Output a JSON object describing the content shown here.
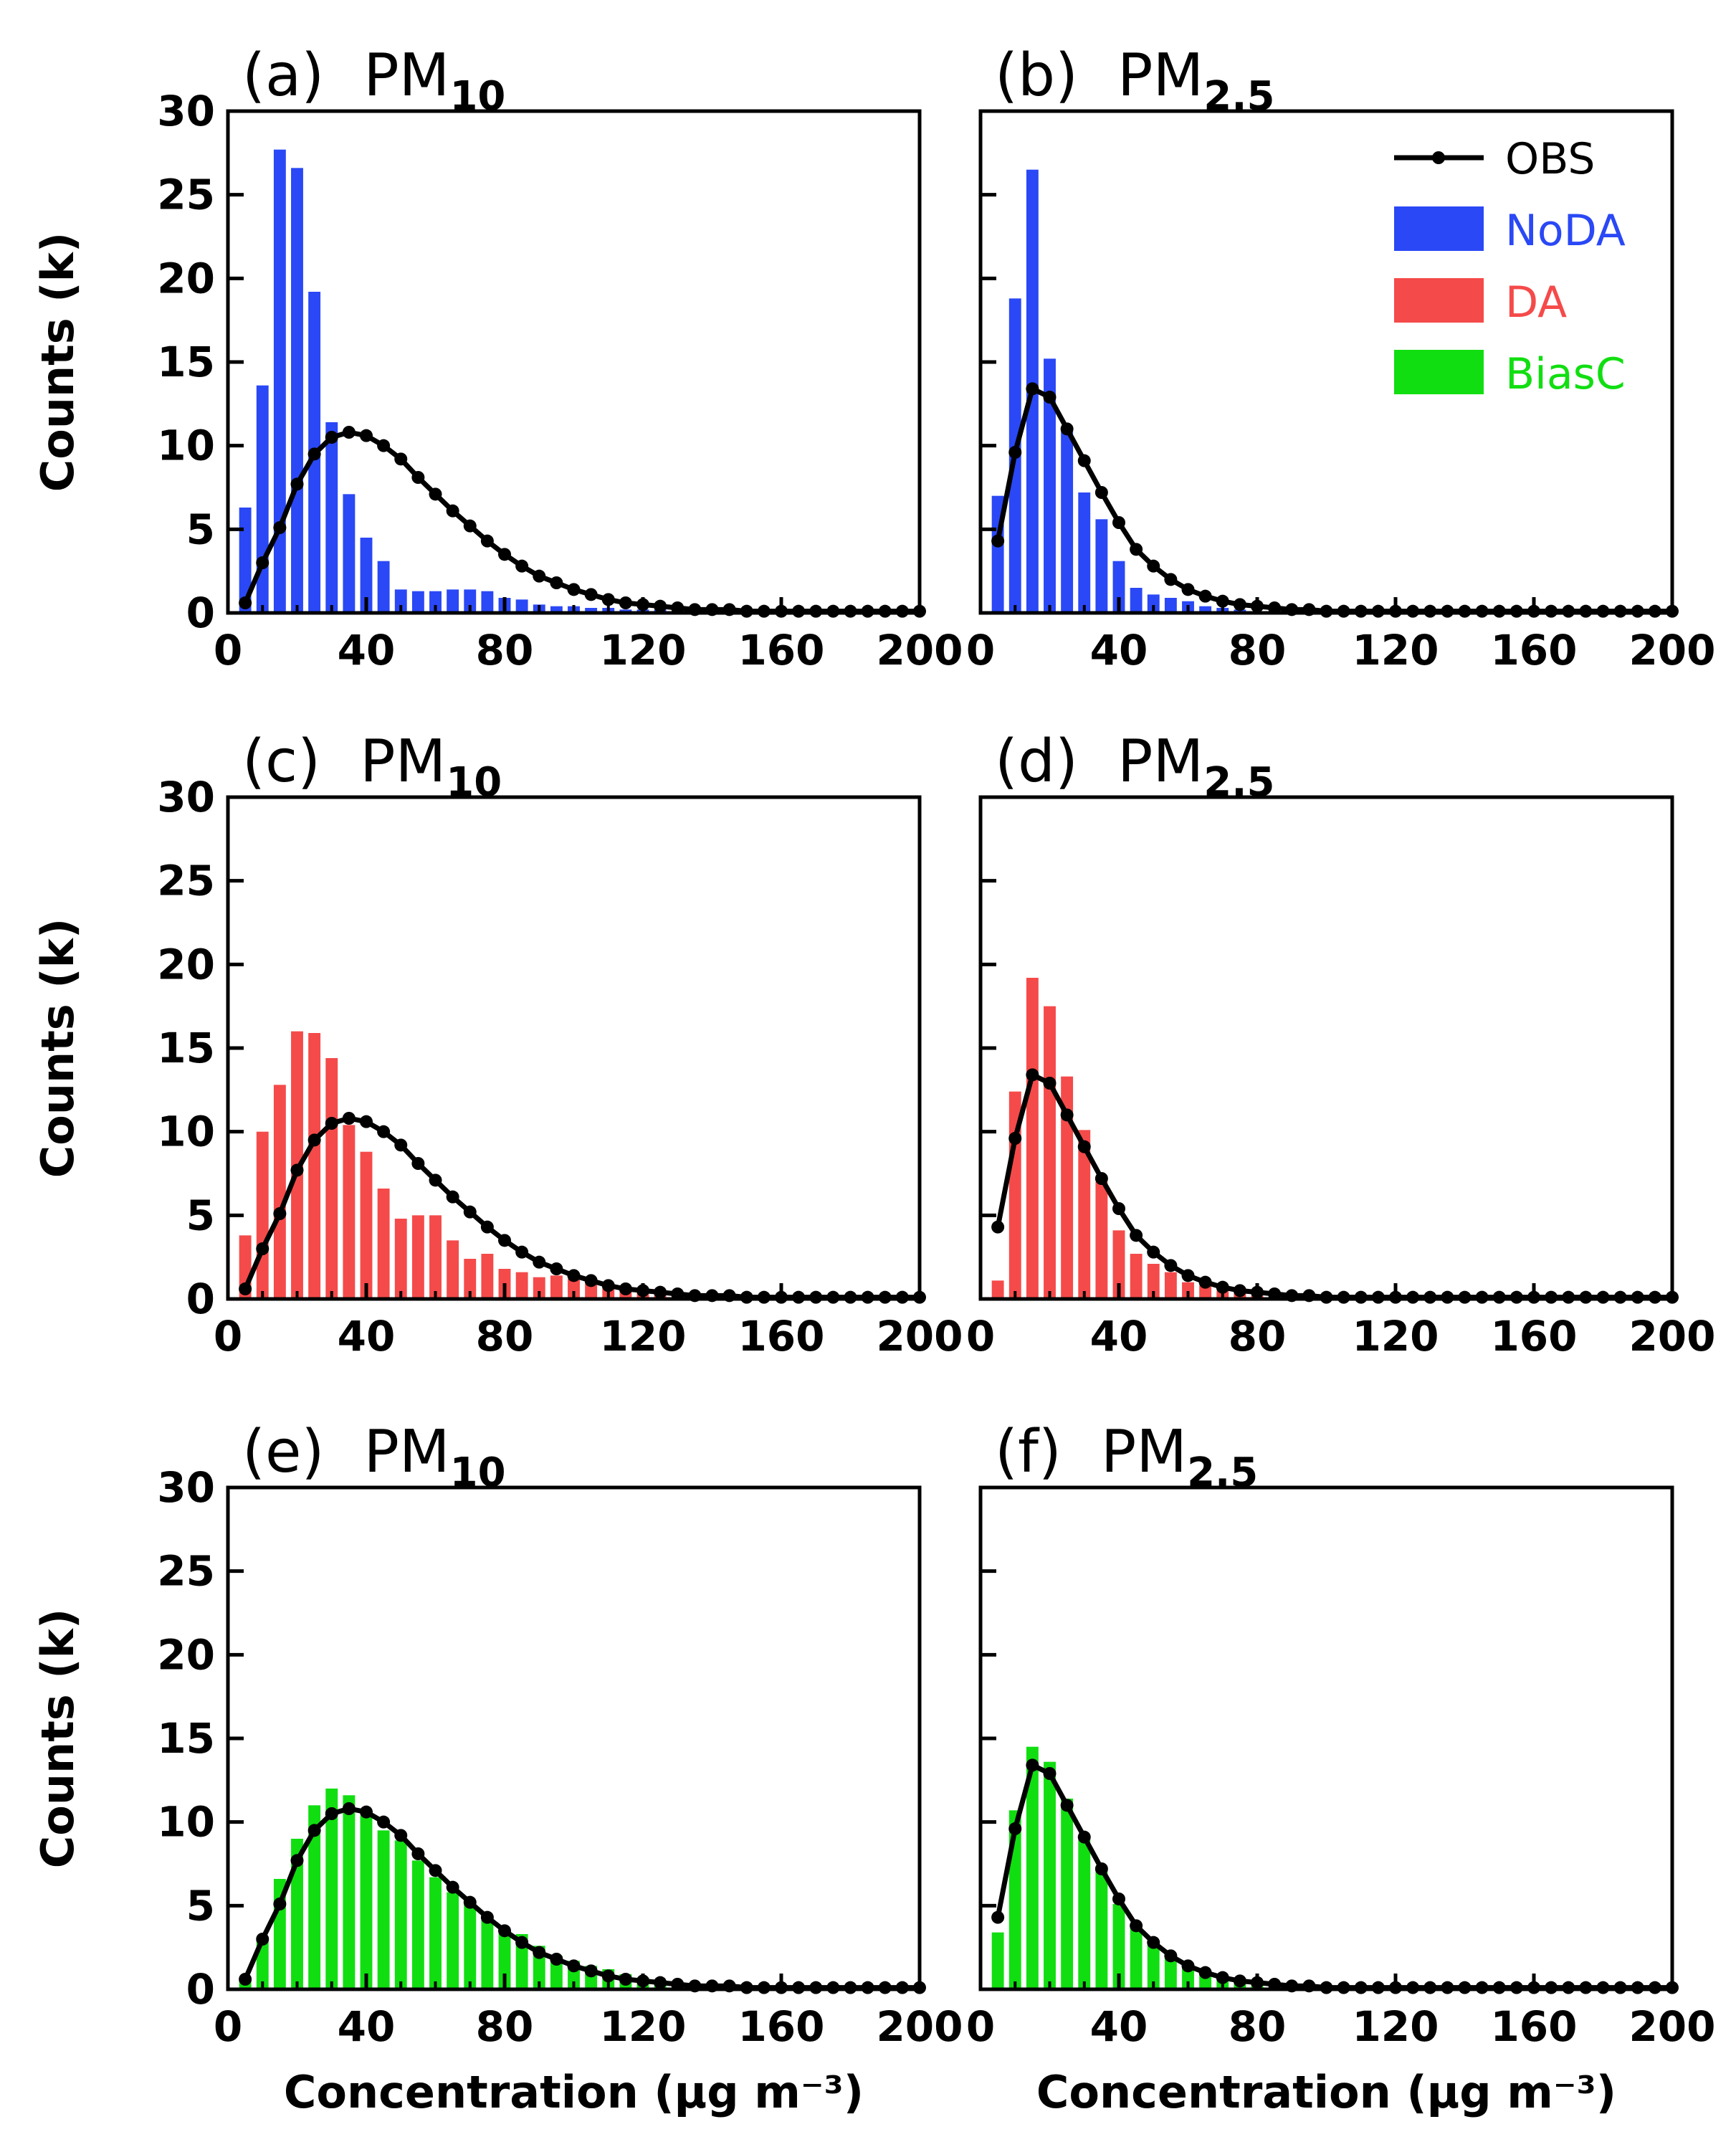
{
  "colors": {
    "NoDA": "#2a48f5",
    "DA": "#f54a4a",
    "BiasC": "#11de11",
    "OBS": "#000000"
  },
  "legend": [
    {
      "name": "OBS",
      "label": "OBS",
      "color": "#000000",
      "kind": "line"
    },
    {
      "name": "NoDA",
      "label": "NoDA",
      "color": "#2a48f5",
      "kind": "bar"
    },
    {
      "name": "DA",
      "label": "DA",
      "color": "#f54a4a",
      "kind": "bar"
    },
    {
      "name": "BiasC",
      "label": "BiasC",
      "color": "#11de11",
      "kind": "bar"
    }
  ],
  "ylabel": "Counts (k)",
  "xlabel": "Concentration (μg m⁻³)",
  "chart_data": [
    {
      "panel": "a",
      "title_letter": "(a)",
      "title_main": "PM",
      "title_sub": "10",
      "type": "bar",
      "xlim": [
        0,
        200
      ],
      "ylim": [
        0,
        30
      ],
      "xticks": [
        0,
        40,
        80,
        120,
        160,
        200
      ],
      "yticks": [
        0,
        5,
        10,
        15,
        20,
        25,
        30
      ],
      "bar_width": 3.5,
      "bars": {
        "name": "NoDA",
        "color": "#2a48f5",
        "x": [
          5,
          10,
          15,
          20,
          25,
          30,
          35,
          40,
          45,
          50,
          55,
          60,
          65,
          70,
          75,
          80,
          85,
          90,
          95,
          100,
          105,
          110,
          115,
          120,
          125,
          130,
          135,
          140,
          145,
          150,
          155,
          160,
          165,
          170,
          175,
          180,
          185,
          190,
          195,
          200
        ],
        "y": [
          6.3,
          13.6,
          27.7,
          26.6,
          19.2,
          11.4,
          7.1,
          4.5,
          3.1,
          1.4,
          1.3,
          1.3,
          1.4,
          1.4,
          1.3,
          0.9,
          0.8,
          0.5,
          0.4,
          0.4,
          0.3,
          0.3,
          0.2,
          0.2,
          0.2,
          0.1,
          0.1,
          0.1,
          0.1,
          0.1,
          0.1,
          0.1,
          0.1,
          0.1,
          0.1,
          0.1,
          0.1,
          0.1,
          0.1,
          0.1
        ]
      },
      "obs": {
        "name": "OBS",
        "x": [
          5,
          10,
          15,
          20,
          25,
          30,
          35,
          40,
          45,
          50,
          55,
          60,
          65,
          70,
          75,
          80,
          85,
          90,
          95,
          100,
          105,
          110,
          115,
          120,
          125,
          130,
          135,
          140,
          145,
          150,
          155,
          160,
          165,
          170,
          175,
          180,
          185,
          190,
          195,
          200
        ],
        "y": [
          0.6,
          3.0,
          5.1,
          7.7,
          9.5,
          10.5,
          10.8,
          10.6,
          10.0,
          9.2,
          8.1,
          7.1,
          6.1,
          5.2,
          4.3,
          3.5,
          2.8,
          2.2,
          1.8,
          1.4,
          1.1,
          0.8,
          0.6,
          0.5,
          0.4,
          0.3,
          0.2,
          0.2,
          0.2,
          0.1,
          0.1,
          0.1,
          0.1,
          0.1,
          0.1,
          0.1,
          0.1,
          0.1,
          0.1,
          0.1
        ]
      }
    },
    {
      "panel": "b",
      "title_letter": "(b)",
      "title_main": "PM",
      "title_sub": "2.5",
      "type": "bar",
      "xlim": [
        0,
        200
      ],
      "ylim": [
        0,
        30
      ],
      "xticks": [
        0,
        40,
        80,
        120,
        160,
        200
      ],
      "yticks": [
        0,
        5,
        10,
        15,
        20,
        25,
        30
      ],
      "bar_width": 3.5,
      "bars": {
        "name": "NoDA",
        "color": "#2a48f5",
        "x": [
          5,
          10,
          15,
          20,
          25,
          30,
          35,
          40,
          45,
          50,
          55,
          60,
          65,
          70,
          75,
          80,
          85,
          90,
          95,
          100,
          105,
          110,
          115,
          120,
          125,
          130,
          135,
          140,
          145,
          150,
          155,
          160,
          165,
          170,
          175,
          180,
          185,
          190,
          195,
          200
        ],
        "y": [
          7.0,
          18.8,
          26.5,
          15.2,
          11.0,
          7.2,
          5.6,
          3.1,
          1.5,
          1.1,
          0.9,
          0.7,
          0.4,
          0.3,
          0.2,
          0.1,
          0.1,
          0.1,
          0,
          0,
          0,
          0,
          0,
          0,
          0,
          0,
          0,
          0,
          0,
          0,
          0,
          0,
          0,
          0,
          0,
          0,
          0,
          0,
          0,
          0
        ]
      },
      "obs": {
        "name": "OBS",
        "x": [
          5,
          10,
          15,
          20,
          25,
          30,
          35,
          40,
          45,
          50,
          55,
          60,
          65,
          70,
          75,
          80,
          85,
          90,
          95,
          100,
          105,
          110,
          115,
          120,
          125,
          130,
          135,
          140,
          145,
          150,
          155,
          160,
          165,
          170,
          175,
          180,
          185,
          190,
          195,
          200
        ],
        "y": [
          4.3,
          9.6,
          13.4,
          12.9,
          11.0,
          9.1,
          7.2,
          5.4,
          3.8,
          2.8,
          2.0,
          1.4,
          1.0,
          0.7,
          0.5,
          0.4,
          0.3,
          0.2,
          0.2,
          0.1,
          0.1,
          0.1,
          0.1,
          0.1,
          0.1,
          0.1,
          0.1,
          0.1,
          0.1,
          0.1,
          0.1,
          0.1,
          0.1,
          0.1,
          0.1,
          0.1,
          0.1,
          0.1,
          0.1,
          0.1
        ]
      }
    },
    {
      "panel": "c",
      "title_letter": "(c)",
      "title_main": "PM",
      "title_sub": "10",
      "type": "bar",
      "xlim": [
        0,
        200
      ],
      "ylim": [
        0,
        30
      ],
      "xticks": [
        0,
        40,
        80,
        120,
        160,
        200
      ],
      "yticks": [
        0,
        5,
        10,
        15,
        20,
        25,
        30
      ],
      "bar_width": 3.5,
      "bars": {
        "name": "DA",
        "color": "#f54a4a",
        "x": [
          5,
          10,
          15,
          20,
          25,
          30,
          35,
          40,
          45,
          50,
          55,
          60,
          65,
          70,
          75,
          80,
          85,
          90,
          95,
          100,
          105,
          110,
          115,
          120,
          125,
          130,
          135,
          140,
          145,
          150,
          155,
          160,
          165,
          170,
          175,
          180,
          185,
          190,
          195,
          200
        ],
        "y": [
          3.8,
          10.0,
          12.8,
          16.0,
          15.9,
          14.4,
          10.4,
          8.8,
          6.6,
          4.8,
          5.0,
          5.0,
          3.5,
          2.4,
          2.7,
          1.8,
          1.6,
          1.3,
          1.4,
          1.2,
          1.0,
          0.8,
          0.6,
          0.5,
          0.4,
          0.3,
          0.3,
          0.2,
          0.2,
          0.2,
          0.2,
          0.1,
          0.1,
          0.1,
          0.1,
          0.1,
          0.1,
          0.1,
          0.1,
          0.1
        ]
      },
      "obs": {
        "name": "OBS",
        "x": [
          5,
          10,
          15,
          20,
          25,
          30,
          35,
          40,
          45,
          50,
          55,
          60,
          65,
          70,
          75,
          80,
          85,
          90,
          95,
          100,
          105,
          110,
          115,
          120,
          125,
          130,
          135,
          140,
          145,
          150,
          155,
          160,
          165,
          170,
          175,
          180,
          185,
          190,
          195,
          200
        ],
        "y": [
          0.6,
          3.0,
          5.1,
          7.7,
          9.5,
          10.5,
          10.8,
          10.6,
          10.0,
          9.2,
          8.1,
          7.1,
          6.1,
          5.2,
          4.3,
          3.5,
          2.8,
          2.2,
          1.8,
          1.4,
          1.1,
          0.8,
          0.6,
          0.5,
          0.4,
          0.3,
          0.2,
          0.2,
          0.2,
          0.1,
          0.1,
          0.1,
          0.1,
          0.1,
          0.1,
          0.1,
          0.1,
          0.1,
          0.1,
          0.1
        ]
      }
    },
    {
      "panel": "d",
      "title_letter": "(d)",
      "title_main": "PM",
      "title_sub": "2.5",
      "type": "bar",
      "xlim": [
        0,
        200
      ],
      "ylim": [
        0,
        30
      ],
      "xticks": [
        0,
        40,
        80,
        120,
        160,
        200
      ],
      "yticks": [
        0,
        5,
        10,
        15,
        20,
        25,
        30
      ],
      "bar_width": 3.5,
      "bars": {
        "name": "DA",
        "color": "#f54a4a",
        "x": [
          5,
          10,
          15,
          20,
          25,
          30,
          35,
          40,
          45,
          50,
          55,
          60,
          65,
          70,
          75,
          80,
          85,
          90,
          95,
          100,
          105,
          110,
          115,
          120,
          125,
          130,
          135,
          140,
          145,
          150,
          155,
          160,
          165,
          170,
          175,
          180,
          185,
          190,
          195,
          200
        ],
        "y": [
          1.1,
          12.4,
          19.2,
          17.5,
          13.3,
          10.1,
          7.0,
          4.1,
          2.7,
          2.1,
          1.6,
          1.0,
          0.8,
          0.5,
          0.4,
          0.2,
          0.2,
          0.1,
          0.1,
          0.1,
          0,
          0,
          0,
          0,
          0,
          0,
          0,
          0,
          0,
          0,
          0,
          0,
          0,
          0,
          0,
          0,
          0,
          0,
          0,
          0
        ]
      },
      "obs": {
        "name": "OBS",
        "x": [
          5,
          10,
          15,
          20,
          25,
          30,
          35,
          40,
          45,
          50,
          55,
          60,
          65,
          70,
          75,
          80,
          85,
          90,
          95,
          100,
          105,
          110,
          115,
          120,
          125,
          130,
          135,
          140,
          145,
          150,
          155,
          160,
          165,
          170,
          175,
          180,
          185,
          190,
          195,
          200
        ],
        "y": [
          4.3,
          9.6,
          13.4,
          12.9,
          11.0,
          9.1,
          7.2,
          5.4,
          3.8,
          2.8,
          2.0,
          1.4,
          1.0,
          0.7,
          0.5,
          0.4,
          0.3,
          0.2,
          0.2,
          0.1,
          0.1,
          0.1,
          0.1,
          0.1,
          0.1,
          0.1,
          0.1,
          0.1,
          0.1,
          0.1,
          0.1,
          0.1,
          0.1,
          0.1,
          0.1,
          0.1,
          0.1,
          0.1,
          0.1,
          0.1
        ]
      }
    },
    {
      "panel": "e",
      "title_letter": "(e)",
      "title_main": "PM",
      "title_sub": "10",
      "type": "bar",
      "xlim": [
        0,
        200
      ],
      "ylim": [
        0,
        30
      ],
      "xticks": [
        0,
        40,
        80,
        120,
        160,
        200
      ],
      "yticks": [
        0,
        5,
        10,
        15,
        20,
        25,
        30
      ],
      "bar_width": 3.5,
      "bars": {
        "name": "BiasC",
        "color": "#11de11",
        "x": [
          5,
          10,
          15,
          20,
          25,
          30,
          35,
          40,
          45,
          50,
          55,
          60,
          65,
          70,
          75,
          80,
          85,
          90,
          95,
          100,
          105,
          110,
          115,
          120,
          125,
          130,
          135,
          140,
          145,
          150,
          155,
          160,
          165,
          170,
          175,
          180,
          185,
          190,
          195,
          200
        ],
        "y": [
          0.7,
          3.0,
          6.6,
          9.0,
          11.0,
          12.0,
          11.6,
          10.4,
          9.5,
          8.9,
          7.7,
          6.7,
          5.8,
          5.1,
          4.4,
          3.5,
          3.3,
          2.6,
          2.0,
          1.7,
          1.4,
          1.2,
          0.9,
          0.7,
          0.5,
          0.4,
          0.3,
          0.3,
          0.2,
          0.2,
          0.2,
          0.1,
          0.1,
          0.1,
          0.1,
          0.1,
          0.1,
          0.1,
          0.1,
          0.1
        ]
      },
      "obs": {
        "name": "OBS",
        "x": [
          5,
          10,
          15,
          20,
          25,
          30,
          35,
          40,
          45,
          50,
          55,
          60,
          65,
          70,
          75,
          80,
          85,
          90,
          95,
          100,
          105,
          110,
          115,
          120,
          125,
          130,
          135,
          140,
          145,
          150,
          155,
          160,
          165,
          170,
          175,
          180,
          185,
          190,
          195,
          200
        ],
        "y": [
          0.6,
          3.0,
          5.1,
          7.7,
          9.5,
          10.5,
          10.8,
          10.6,
          10.0,
          9.2,
          8.1,
          7.1,
          6.1,
          5.2,
          4.3,
          3.5,
          2.8,
          2.2,
          1.8,
          1.4,
          1.1,
          0.8,
          0.6,
          0.5,
          0.4,
          0.3,
          0.2,
          0.2,
          0.2,
          0.1,
          0.1,
          0.1,
          0.1,
          0.1,
          0.1,
          0.1,
          0.1,
          0.1,
          0.1,
          0.1
        ]
      }
    },
    {
      "panel": "f",
      "title_letter": "(f)",
      "title_main": "PM",
      "title_sub": "2.5",
      "type": "bar",
      "xlim": [
        0,
        200
      ],
      "ylim": [
        0,
        30
      ],
      "xticks": [
        0,
        40,
        80,
        120,
        160,
        200
      ],
      "yticks": [
        0,
        5,
        10,
        15,
        20,
        25,
        30
      ],
      "bar_width": 3.5,
      "bars": {
        "name": "BiasC",
        "color": "#11de11",
        "x": [
          5,
          10,
          15,
          20,
          25,
          30,
          35,
          40,
          45,
          50,
          55,
          60,
          65,
          70,
          75,
          80,
          85,
          90,
          95,
          100,
          105,
          110,
          115,
          120,
          125,
          130,
          135,
          140,
          145,
          150,
          155,
          160,
          165,
          170,
          175,
          180,
          185,
          190,
          195,
          200
        ],
        "y": [
          3.4,
          10.7,
          14.5,
          13.6,
          11.4,
          9.0,
          7.3,
          5.1,
          3.7,
          2.9,
          2.0,
          1.4,
          0.9,
          0.7,
          0.5,
          0.3,
          0.2,
          0.2,
          0.1,
          0.1,
          0.1,
          0,
          0,
          0,
          0,
          0,
          0,
          0,
          0,
          0,
          0,
          0,
          0,
          0,
          0,
          0,
          0,
          0,
          0,
          0
        ]
      },
      "obs": {
        "name": "OBS",
        "x": [
          5,
          10,
          15,
          20,
          25,
          30,
          35,
          40,
          45,
          50,
          55,
          60,
          65,
          70,
          75,
          80,
          85,
          90,
          95,
          100,
          105,
          110,
          115,
          120,
          125,
          130,
          135,
          140,
          145,
          150,
          155,
          160,
          165,
          170,
          175,
          180,
          185,
          190,
          195,
          200
        ],
        "y": [
          4.3,
          9.6,
          13.4,
          12.9,
          11.0,
          9.1,
          7.2,
          5.4,
          3.8,
          2.8,
          2.0,
          1.4,
          1.0,
          0.7,
          0.5,
          0.4,
          0.3,
          0.2,
          0.2,
          0.1,
          0.1,
          0.1,
          0.1,
          0.1,
          0.1,
          0.1,
          0.1,
          0.1,
          0.1,
          0.1,
          0.1,
          0.1,
          0.1,
          0.1,
          0.1,
          0.1,
          0.1,
          0.1,
          0.1,
          0.1
        ]
      }
    }
  ]
}
